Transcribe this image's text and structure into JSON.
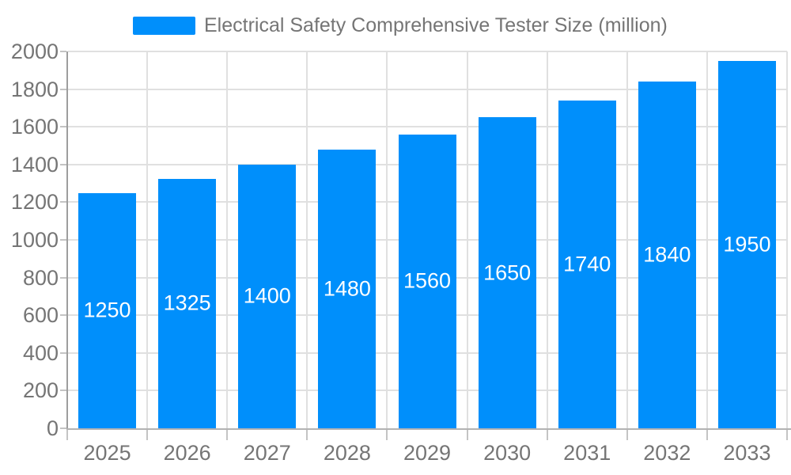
{
  "legend": {
    "label": "Electrical Safety Comprehensive Tester Size (million)"
  },
  "chart_data": {
    "type": "bar",
    "title": "Electrical Safety Comprehensive Tester Size (million)",
    "categories": [
      "2025",
      "2026",
      "2027",
      "2028",
      "2029",
      "2030",
      "2031",
      "2032",
      "2033"
    ],
    "values": [
      1250,
      1325,
      1400,
      1480,
      1560,
      1650,
      1740,
      1840,
      1950
    ],
    "data_labels": [
      "1250",
      "1325",
      "1400",
      "1480",
      "1560",
      "1650",
      "1740",
      "1840",
      "1950"
    ],
    "xlabel": "",
    "ylabel": "",
    "ylim": [
      0,
      2000
    ],
    "y_ticks": [
      0,
      200,
      400,
      600,
      800,
      1000,
      1200,
      1400,
      1600,
      1800,
      2000
    ],
    "grid": true,
    "legend_position": "top",
    "data_label_position": "inside-center"
  },
  "colors": {
    "bar": "#008FFB",
    "grid": "#e0e0e0",
    "axis": "#9e9e9e",
    "baseline": "#b3b3b3",
    "tick": "#c4c4c4",
    "text": "#757575",
    "data_label": "#ffffff",
    "background": "#ffffff"
  }
}
